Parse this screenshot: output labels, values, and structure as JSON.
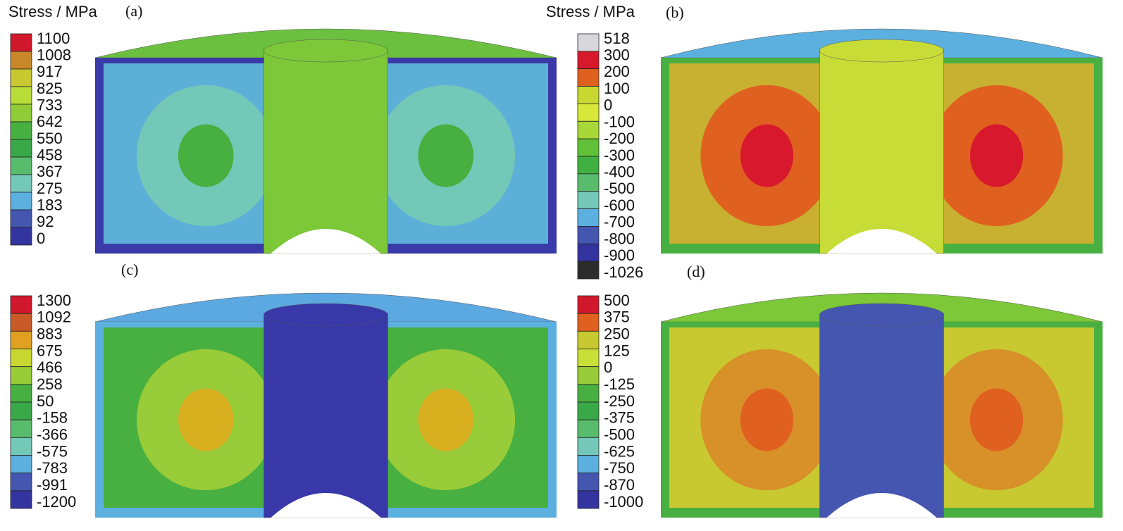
{
  "panels": [
    {
      "label": "(a)",
      "legend_title": "Stress / MPa",
      "legend": {
        "labels": [
          1100,
          1008,
          917,
          825,
          733,
          642,
          550,
          458,
          367,
          275,
          183,
          92,
          0
        ],
        "colors": [
          "#d2182c",
          "#c8882a",
          "#c8c830",
          "#b8dc38",
          "#90cc38",
          "#48b040",
          "#38a848",
          "#58bc6c",
          "#74c8b8",
          "#5cb0e0",
          "#4456b0",
          "#3434a0"
        ]
      }
    },
    {
      "label": "(b)",
      "legend_title": "Stress / MPa",
      "legend": {
        "labels": [
          518,
          300,
          200,
          100,
          0,
          -100,
          -200,
          -300,
          -400,
          -500,
          -600,
          -700,
          -800,
          -900,
          -1026
        ],
        "colors": [
          "#d8d8dc",
          "#d8182c",
          "#e06020",
          "#c8d830",
          "#d8e838",
          "#a8d838",
          "#60c038",
          "#40b040",
          "#58bc6c",
          "#74c8b8",
          "#5cb0e0",
          "#4456b0",
          "#3434a0",
          "#2c2c2c"
        ]
      }
    },
    {
      "label": "(c)",
      "legend": {
        "labels": [
          1300,
          1092,
          883,
          675,
          466,
          258,
          50,
          -158,
          -366,
          -575,
          -783,
          -991,
          -1200
        ],
        "colors": [
          "#d2182c",
          "#c85a28",
          "#e0a020",
          "#c8d830",
          "#98cc38",
          "#48b040",
          "#38a848",
          "#58bc6c",
          "#74c8b8",
          "#5cb0e0",
          "#4456b0",
          "#3434a0"
        ]
      }
    },
    {
      "label": "(d)",
      "legend": {
        "labels": [
          500,
          375,
          250,
          125,
          0,
          -125,
          -250,
          -375,
          -500,
          -625,
          -750,
          -870,
          -1000
        ],
        "colors": [
          "#d2182c",
          "#e06020",
          "#c8c830",
          "#c8e038",
          "#98cc38",
          "#48b040",
          "#38a848",
          "#58bc6c",
          "#74c8b8",
          "#5cb0e0",
          "#4456b0",
          "#3434a0"
        ]
      }
    }
  ]
}
